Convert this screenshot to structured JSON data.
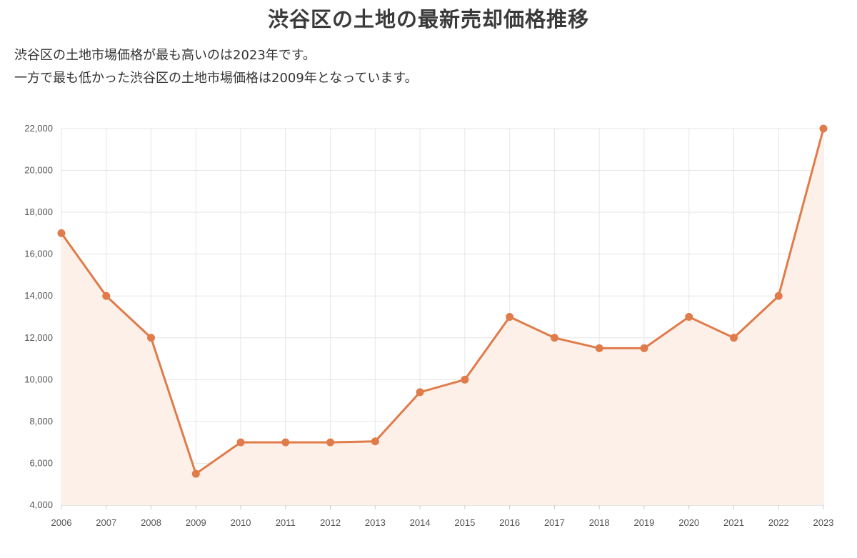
{
  "title": "渋谷区の土地の最新売却価格推移",
  "description": [
    "渋谷区の土地市場価格が最も高いのは2023年です。",
    "一方で最も低かった渋谷区の土地市場価格は2009年となっています。"
  ],
  "colors": {
    "line": "#e07b4a",
    "fill": "#fdf0e8",
    "grid": "#e6e6e6"
  },
  "chart_data": {
    "type": "line",
    "categories": [
      "2006",
      "2007",
      "2008",
      "2009",
      "2010",
      "2011",
      "2012",
      "2013",
      "2014",
      "2015",
      "2016",
      "2017",
      "2018",
      "2019",
      "2020",
      "2021",
      "2022",
      "2023"
    ],
    "values": [
      17000,
      14000,
      12000,
      5500,
      7000,
      7000,
      7000,
      7050,
      9400,
      10000,
      13000,
      12000,
      11500,
      11500,
      13000,
      12000,
      14000,
      22000
    ],
    "ylim": [
      4000,
      22000
    ],
    "yticks": [
      4000,
      6000,
      8000,
      10000,
      12000,
      14000,
      16000,
      18000,
      20000,
      22000
    ],
    "ytick_labels": [
      "4,000",
      "6,000",
      "8,000",
      "10,000",
      "12,000",
      "14,000",
      "16,000",
      "18,000",
      "20,000",
      "22,000"
    ],
    "grid": true,
    "area_fill": true,
    "xlabel": "",
    "ylabel": ""
  }
}
